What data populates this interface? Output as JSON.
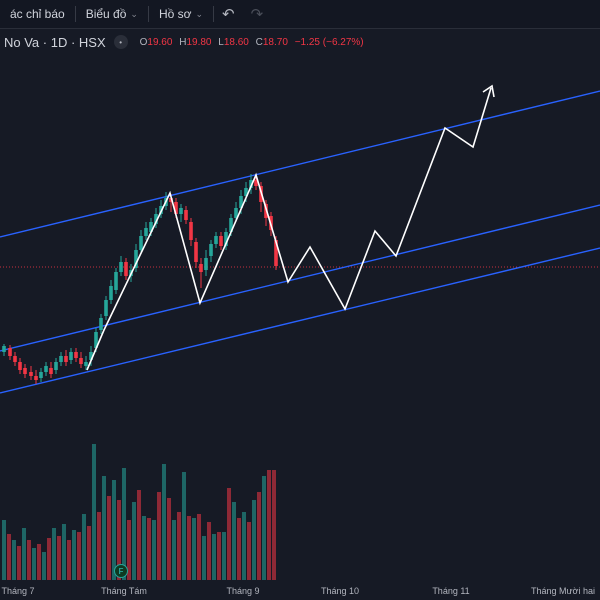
{
  "toolbar": {
    "indicators_label": "ác chỉ báo",
    "chart_label": "Biểu đồ",
    "profile_label": "Hồ sơ",
    "undo_icon": "undo-icon",
    "redo_icon": "redo-icon"
  },
  "legend": {
    "symbol": "No Va · 1D · HSX",
    "open_key": "O",
    "open": "19.60",
    "high_key": "H",
    "high": "19.80",
    "low_key": "L",
    "low": "18.60",
    "close_key": "C",
    "close": "18.70",
    "change": "−1.25 (−6.27%)"
  },
  "xaxis": {
    "labels": [
      "Tháng 7",
      "Tháng Tám",
      "Tháng 9",
      "Tháng 10",
      "Tháng 11",
      "Tháng Mười hai"
    ]
  },
  "event_badge": "F",
  "colors": {
    "up": "#26a69a",
    "down": "#f23645",
    "channel": "#2962ff",
    "projection": "#ffffff",
    "background": "#161a25"
  }
}
